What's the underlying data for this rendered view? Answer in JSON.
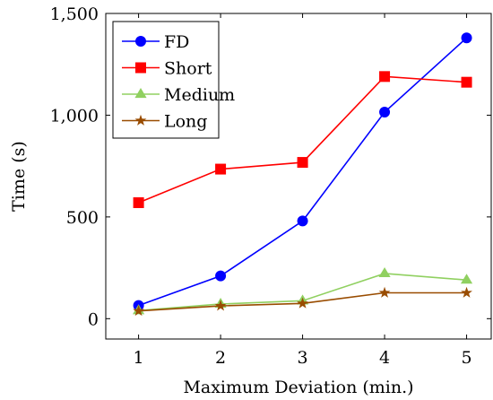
{
  "chart_data": {
    "type": "line",
    "xlabel": "Maximum Deviation (min.)",
    "ylabel": "Time (s)",
    "x": [
      1,
      2,
      3,
      4,
      5
    ],
    "xlim": [
      0.6,
      5.3
    ],
    "ylim": [
      -100,
      1500
    ],
    "xticks": [
      1,
      2,
      3,
      4,
      5
    ],
    "xtick_labels": [
      "1",
      "2",
      "3",
      "4",
      "5"
    ],
    "yticks": [
      0,
      500,
      1000,
      1500
    ],
    "ytick_labels": [
      "0",
      "500",
      "1,000",
      "1,500"
    ],
    "grid": false,
    "legend_position": "top-left",
    "series": [
      {
        "name": "FD",
        "color": "#0000ff",
        "marker": "circle",
        "values": [
          65,
          210,
          480,
          1015,
          1380
        ]
      },
      {
        "name": "Short",
        "color": "#ff0000",
        "marker": "square",
        "values": [
          570,
          735,
          768,
          1190,
          1162
        ]
      },
      {
        "name": "Medium",
        "color": "#90d060",
        "marker": "triangle",
        "values": [
          40,
          72,
          88,
          222,
          190
        ]
      },
      {
        "name": "Long",
        "color": "#994c00",
        "marker": "star",
        "values": [
          38,
          63,
          75,
          127,
          127
        ]
      }
    ]
  }
}
